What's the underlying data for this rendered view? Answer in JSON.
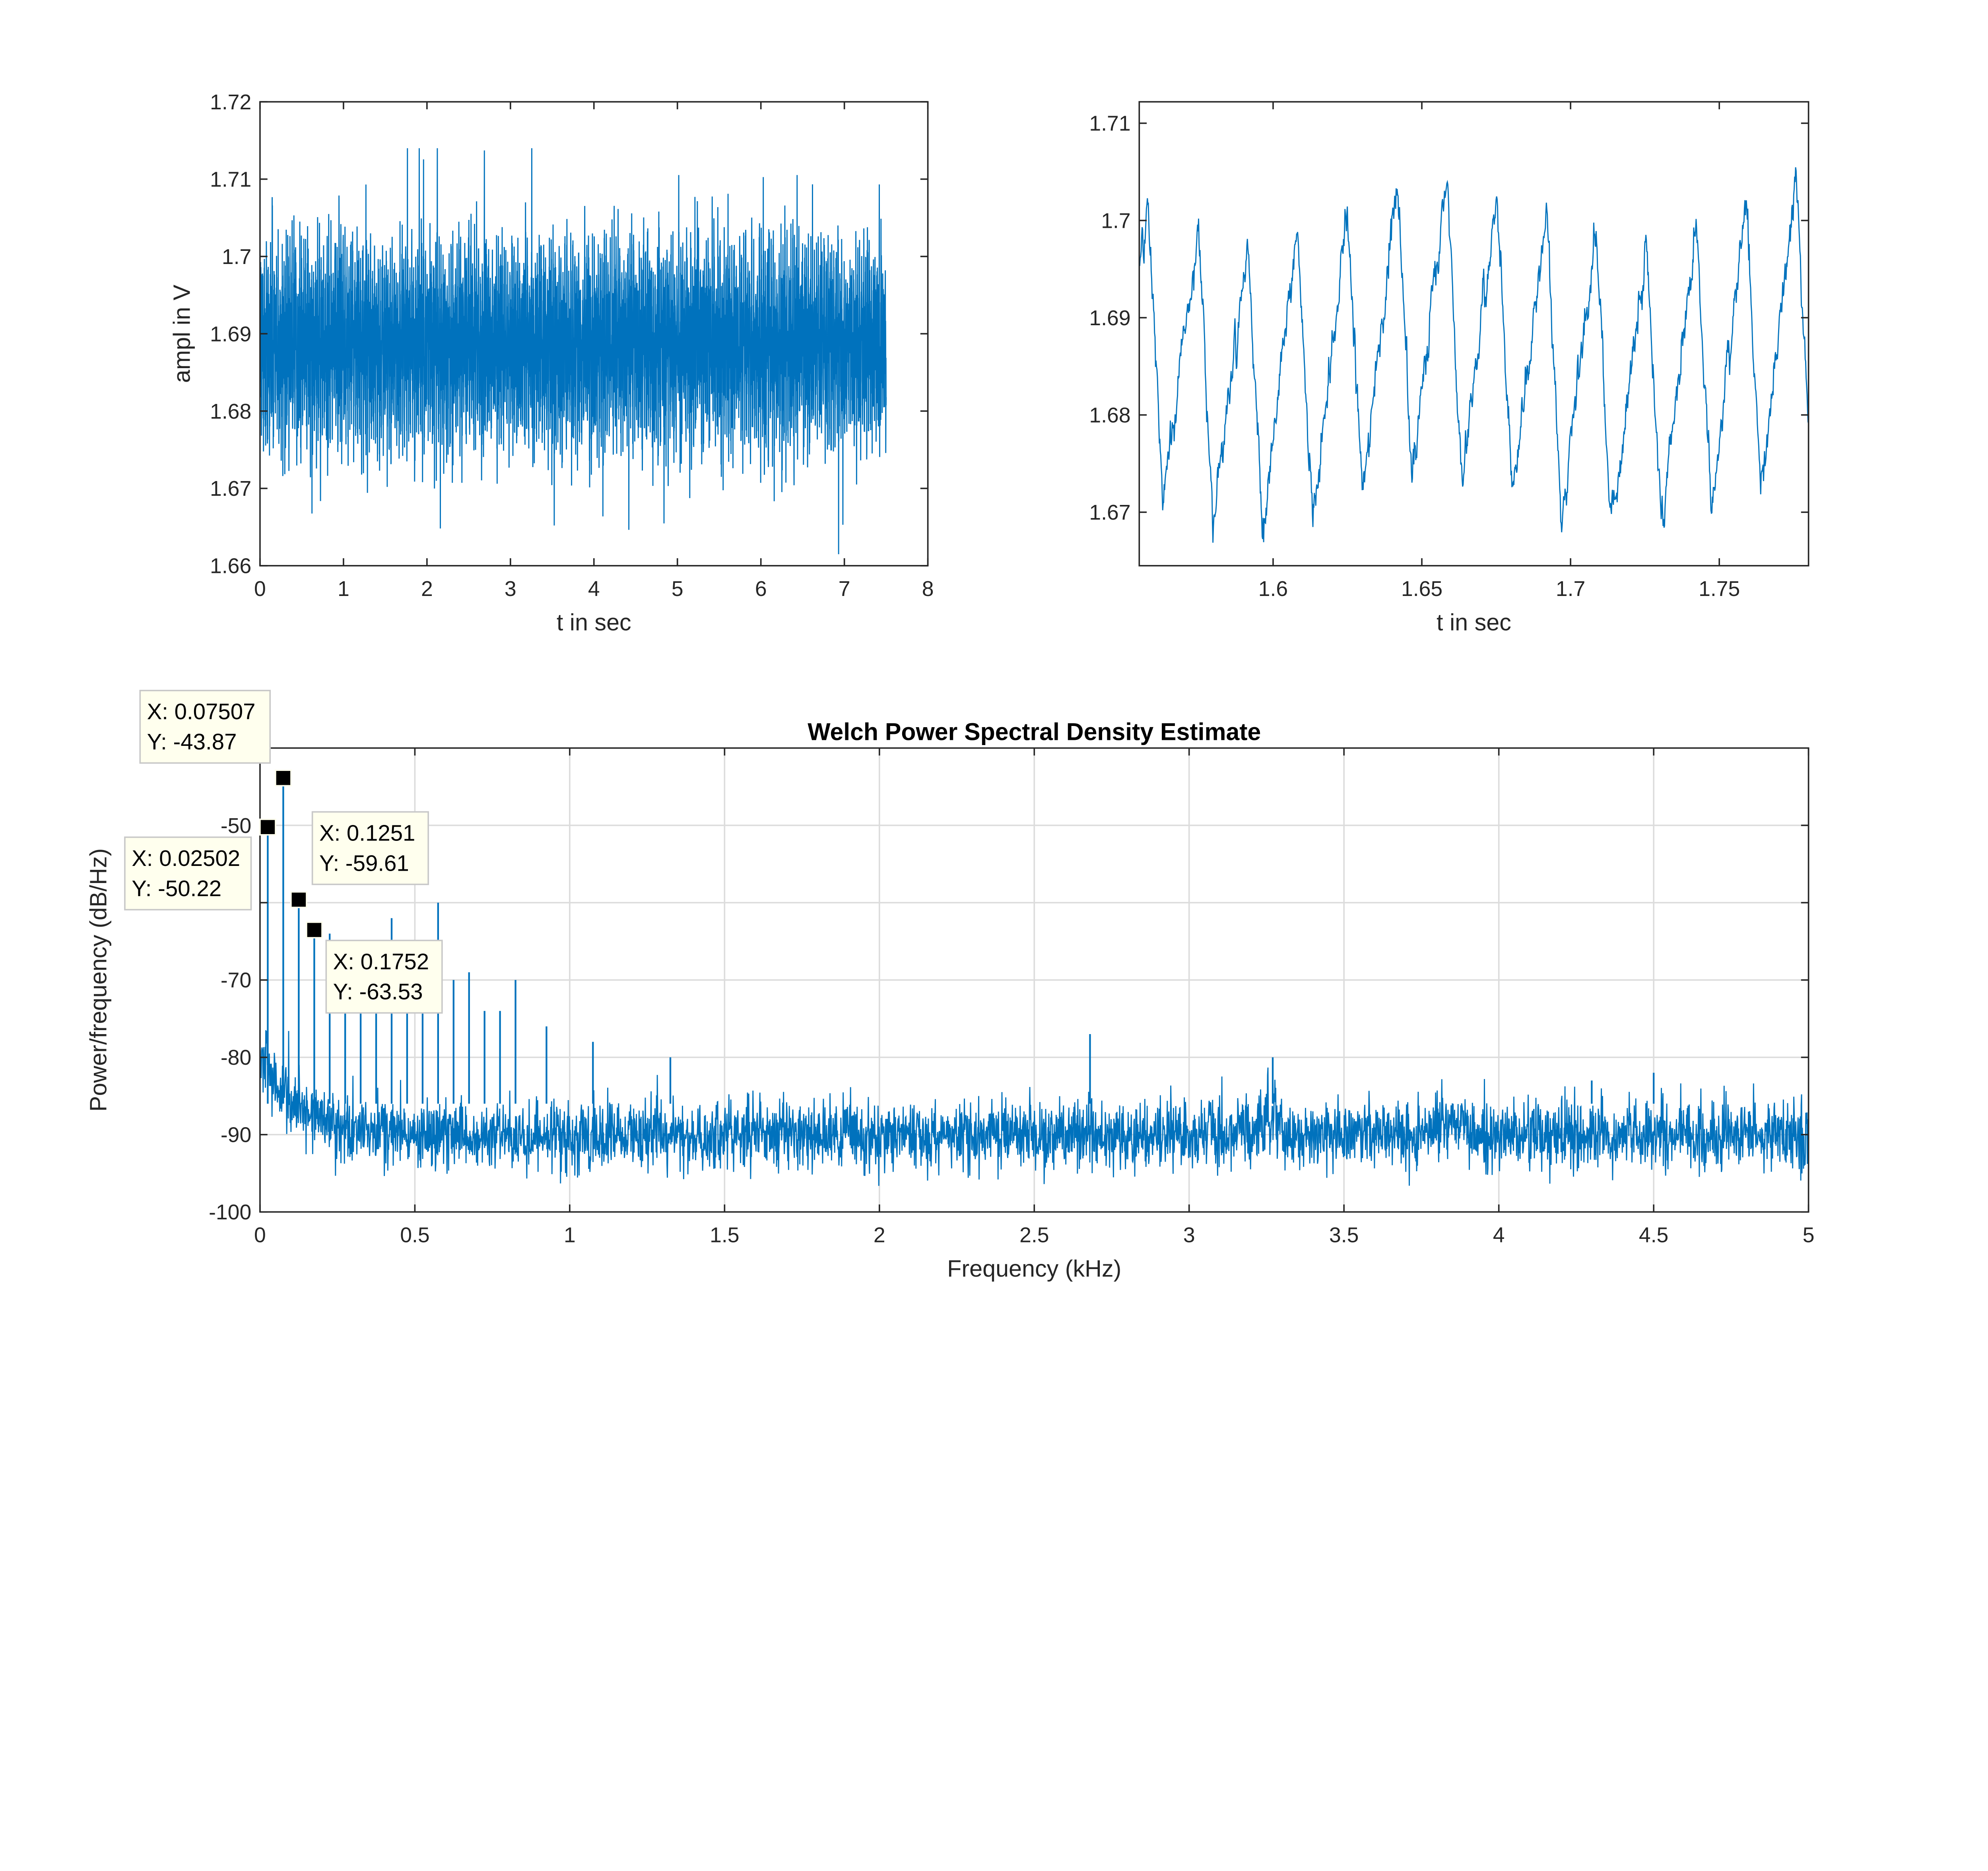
{
  "colors": {
    "series": "#0072BD",
    "axis": "#262626",
    "grid": "#dcdcdc",
    "datatip_bg": "#ffffee",
    "datatip_border": "#c8c8c8",
    "marker": "#000000"
  },
  "chart_data": [
    {
      "id": "time_full",
      "type": "line",
      "xlabel": "t in sec",
      "ylabel": "ampl in V",
      "xlim": [
        0,
        8
      ],
      "ylim": [
        1.66,
        1.72
      ],
      "xticks": [
        0,
        1,
        2,
        3,
        4,
        5,
        6,
        7,
        8
      ],
      "xtick_labels": [
        "0",
        "1",
        "2",
        "3",
        "4",
        "5",
        "6",
        "7",
        "8"
      ],
      "yticks": [
        1.66,
        1.67,
        1.68,
        1.69,
        1.7,
        1.71,
        1.72
      ],
      "ytick_labels": [
        "1.66",
        "1.67",
        "1.68",
        "1.69",
        "1.7",
        "1.71",
        "1.72"
      ],
      "grid": false,
      "series_summary": {
        "t_start": 0,
        "t_end": 7.5,
        "mean": 1.6885,
        "typical_min": 1.672,
        "typical_max": 1.708,
        "abs_min": 1.66,
        "abs_max": 1.714
      }
    },
    {
      "id": "time_zoom",
      "type": "line",
      "xlabel": "t in sec",
      "ylabel": "",
      "xlim": [
        1.555,
        1.78
      ],
      "ylim": [
        1.6645,
        1.7122
      ],
      "xticks": [
        1.6,
        1.65,
        1.7,
        1.75
      ],
      "xtick_labels": [
        "1.6",
        "1.65",
        "1.7",
        "1.75"
      ],
      "yticks": [
        1.67,
        1.68,
        1.69,
        1.7,
        1.71
      ],
      "ytick_labels": [
        "1.67",
        "1.68",
        "1.69",
        "1.7",
        "1.71"
      ],
      "grid": false,
      "series_summary": {
        "min": 1.668,
        "max": 1.708,
        "peak_times": [
          1.563,
          1.582,
          1.598,
          1.617,
          1.633,
          1.664,
          1.68,
          1.716,
          1.733,
          1.75,
          1.77
        ]
      }
    },
    {
      "id": "psd",
      "type": "line",
      "title": "Welch Power Spectral Density Estimate",
      "xlabel": "Frequency (kHz)",
      "ylabel": "Power/frequency (dB/Hz)",
      "xlim": [
        0,
        5
      ],
      "ylim": [
        -100,
        -40
      ],
      "xticks": [
        0,
        0.5,
        1,
        1.5,
        2,
        2.5,
        3,
        3.5,
        4,
        4.5,
        5
      ],
      "xtick_labels": [
        "0",
        "0.5",
        "1",
        "1.5",
        "2",
        "2.5",
        "3",
        "3.5",
        "4",
        "4.5",
        "5"
      ],
      "yticks": [
        -100,
        -90,
        -80,
        -70,
        -60,
        -50
      ],
      "ytick_labels": [
        "-100",
        "-90",
        "-80",
        "-70",
        "",
        "-50"
      ],
      "grid": true,
      "noise_floor_db": -90,
      "peaks": [
        {
          "x": 0.02502,
          "y": -50.22
        },
        {
          "x": 0.07507,
          "y": -43.87
        },
        {
          "x": 0.1251,
          "y": -59.61
        },
        {
          "x": 0.1752,
          "y": -63.53
        },
        {
          "x": 0.225,
          "y": -64
        },
        {
          "x": 0.275,
          "y": -68
        },
        {
          "x": 0.325,
          "y": -70
        },
        {
          "x": 0.375,
          "y": -68
        },
        {
          "x": 0.425,
          "y": -62
        },
        {
          "x": 0.475,
          "y": -70
        },
        {
          "x": 0.525,
          "y": -70
        },
        {
          "x": 0.575,
          "y": -60
        },
        {
          "x": 0.625,
          "y": -70
        },
        {
          "x": 0.675,
          "y": -69
        },
        {
          "x": 0.725,
          "y": -74
        },
        {
          "x": 0.775,
          "y": -74
        },
        {
          "x": 0.825,
          "y": -70
        },
        {
          "x": 0.925,
          "y": -76
        },
        {
          "x": 1.075,
          "y": -78
        },
        {
          "x": 1.325,
          "y": -80
        },
        {
          "x": 2.68,
          "y": -77
        },
        {
          "x": 3.27,
          "y": -80
        },
        {
          "x": 4.3,
          "y": -83
        },
        {
          "x": 4.5,
          "y": -82
        }
      ],
      "datatips": [
        {
          "x_label": "X: 0.07507",
          "y_label": "Y: -43.87",
          "x": 0.07507,
          "y": -43.87
        },
        {
          "x_label": "X: 0.02502",
          "y_label": "Y: -50.22",
          "x": 0.02502,
          "y": -50.22
        },
        {
          "x_label": "X: 0.1251",
          "y_label": "Y: -59.61",
          "x": 0.1251,
          "y": -59.61
        },
        {
          "x_label": "X: 0.1752",
          "y_label": "Y: -63.53",
          "x": 0.1752,
          "y": -63.53
        }
      ]
    }
  ]
}
